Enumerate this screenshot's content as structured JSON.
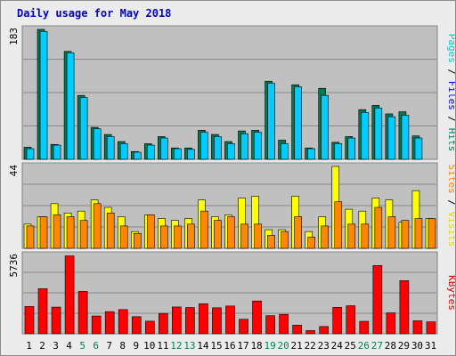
{
  "chart_data": [
    {
      "type": "bar",
      "title": "Daily usage for May 2018",
      "categories": [
        "1",
        "2",
        "3",
        "4",
        "5",
        "6",
        "7",
        "8",
        "9",
        "10",
        "11",
        "12",
        "13",
        "14",
        "15",
        "16",
        "17",
        "18",
        "19",
        "20",
        "21",
        "22",
        "23",
        "24",
        "25",
        "26",
        "27",
        "28",
        "29",
        "30",
        "31"
      ],
      "weekend_days": [
        "5",
        "6",
        "12",
        "13",
        "19",
        "20",
        "26",
        "27"
      ],
      "ymax_label": "183",
      "ylim": [
        0,
        183
      ],
      "legend": [
        {
          "text": "Pages",
          "color": "#00c8c8"
        },
        {
          "text": "Files",
          "color": "#0000cc"
        },
        {
          "text": "Hits",
          "color": "#008060"
        }
      ],
      "series": [
        {
          "name": "Hits",
          "color": "#007755",
          "values": [
            17,
            183,
            21,
            152,
            90,
            45,
            35,
            25,
            11,
            22,
            32,
            16,
            16,
            41,
            35,
            25,
            40,
            41,
            110,
            27,
            105,
            16,
            100,
            24,
            32,
            70,
            76,
            64,
            67,
            33,
            0
          ]
        },
        {
          "name": "Files",
          "color": "#00ccff",
          "values": [
            15,
            180,
            20,
            150,
            87,
            43,
            32,
            22,
            10,
            20,
            30,
            15,
            14,
            38,
            32,
            22,
            36,
            38,
            107,
            22,
            102,
            15,
            90,
            22,
            30,
            66,
            72,
            60,
            62,
            30,
            0
          ]
        }
      ]
    },
    {
      "type": "bar",
      "ymax_label": "44",
      "ylim": [
        0,
        44
      ],
      "legend": [
        {
          "text": "Sites",
          "color": "#ff8800"
        },
        {
          "text": "Visits",
          "color": "#dddd00"
        }
      ],
      "series": [
        {
          "name": "Visits",
          "color": "#ffff00",
          "values": [
            13,
            17,
            24,
            19,
            20,
            26,
            22,
            17,
            9,
            18,
            16,
            15,
            16,
            26,
            17,
            18,
            27,
            28,
            10,
            10,
            28,
            9,
            17,
            44,
            21,
            20,
            27,
            26,
            14,
            31,
            16
          ]
        },
        {
          "name": "Sites",
          "color": "#ff8800",
          "values": [
            12,
            17,
            18,
            17,
            15,
            24,
            19,
            12,
            8,
            18,
            12,
            12,
            13,
            20,
            15,
            17,
            13,
            13,
            7,
            9,
            17,
            6,
            12,
            25,
            13,
            13,
            22,
            17,
            15,
            16,
            16
          ]
        }
      ]
    },
    {
      "type": "bar",
      "ymax_label": "5736",
      "ylim": [
        0,
        5736
      ],
      "legend": [
        {
          "text": "KBytes",
          "color": "#cc0000"
        }
      ],
      "series": [
        {
          "name": "KBytes",
          "color": "#ff0000",
          "values": [
            2000,
            3300,
            1950,
            5700,
            3100,
            1300,
            1620,
            1770,
            1250,
            920,
            1490,
            1960,
            1920,
            2200,
            1900,
            2030,
            1060,
            2400,
            1320,
            1420,
            630,
            230,
            530,
            1930,
            2050,
            910,
            5000,
            1530,
            3890,
            950,
            870
          ]
        }
      ]
    }
  ]
}
